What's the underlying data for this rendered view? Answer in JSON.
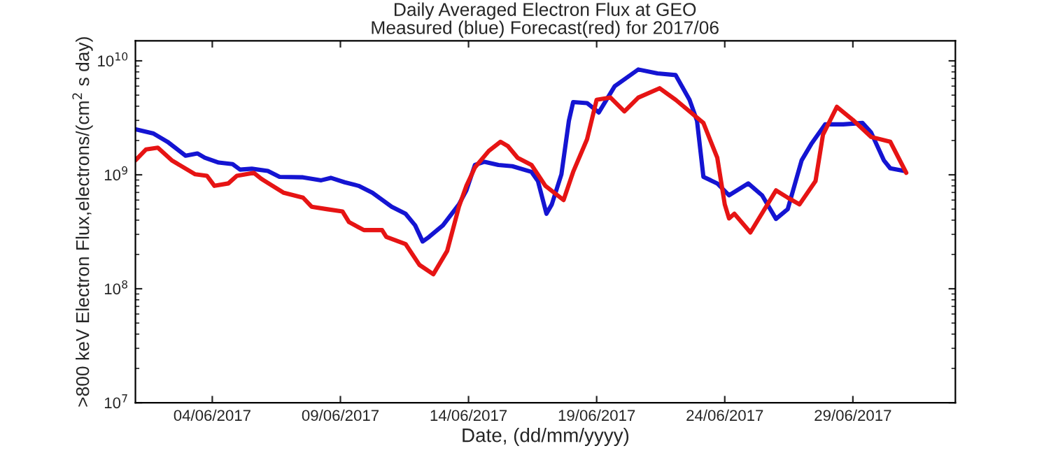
{
  "chart_data": {
    "type": "line",
    "title": "Daily Averaged Electron Flux at GEO",
    "subtitle": "Measured (blue) Forecast(red) for 2017/06",
    "xlabel": "Date, (dd/mm/yyyy)",
    "ylabel": ">800 keV Electron Flux,electrons/(cm$^{2}$ s day)",
    "log": "y",
    "grid": false,
    "legend": false,
    "marker": "none",
    "line_style": "solid",
    "xlim": [
      "2017-06-01",
      "2017-07-03"
    ],
    "xticks": [
      {
        "value": "2017-06-04",
        "label": "04/06/2017"
      },
      {
        "value": "2017-06-09",
        "label": "09/06/2017"
      },
      {
        "value": "2017-06-14",
        "label": "14/06/2017"
      },
      {
        "value": "2017-06-19",
        "label": "19/06/2017"
      },
      {
        "value": "2017-06-24",
        "label": "24/06/2017"
      },
      {
        "value": "2017-06-29",
        "label": "29/06/2017"
      }
    ],
    "ylim": [
      10000000.0,
      15000000000.0
    ],
    "yticks": [
      {
        "value": 10000000.0,
        "label": "10$^{7}$"
      },
      {
        "value": 100000000.0,
        "label": "10$^{8}$"
      },
      {
        "value": 1000000000.0,
        "label": "10$^{9}$"
      },
      {
        "value": 10000000000.0,
        "label": "10$^{10}$"
      }
    ],
    "series": [
      {
        "color": "#1414d2",
        "x": [
          "2017-06-01T01:00",
          "2017-06-01T17:00",
          "2017-06-02T06:00",
          "2017-06-02T23:00",
          "2017-06-03T10:00",
          "2017-06-03T17:00",
          "2017-06-04T06:00",
          "2017-06-04T19:00",
          "2017-06-05T02:00",
          "2017-06-05T13:00",
          "2017-06-06T04:00",
          "2017-06-06T15:00",
          "2017-06-07T13:00",
          "2017-06-08T06:00",
          "2017-06-08T15:00",
          "2017-06-09T04:00",
          "2017-06-09T17:00",
          "2017-06-10T06:00",
          "2017-06-11T00:00",
          "2017-06-11T13:00",
          "2017-06-11T22:00",
          "2017-06-12T05:00",
          "2017-06-12T11:00",
          "2017-06-13T00:00",
          "2017-06-13T15:00",
          "2017-06-13T22:00",
          "2017-06-14T06:00",
          "2017-06-14T15:00",
          "2017-06-15T04:00",
          "2017-06-15T17:00",
          "2017-06-16T11:00",
          "2017-06-16T17:00",
          "2017-06-17T01:00",
          "2017-06-17T06:00",
          "2017-06-17T15:00",
          "2017-06-17T22:00",
          "2017-06-18T02:00",
          "2017-06-18T15:00",
          "2017-06-19T02:00",
          "2017-06-19T17:00",
          "2017-06-20T15:00",
          "2017-06-21T09:00",
          "2017-06-22T02:00",
          "2017-06-22T15:00",
          "2017-06-22T22:00",
          "2017-06-23T04:00",
          "2017-06-23T17:00",
          "2017-06-24T04:00",
          "2017-06-24T22:00",
          "2017-06-25T11:00",
          "2017-06-26T00:00",
          "2017-06-26T11:00",
          "2017-06-27T00:00",
          "2017-06-27T09:00",
          "2017-06-27T22:00",
          "2017-06-28T15:00",
          "2017-06-29T09:00",
          "2017-06-29T17:00",
          "2017-06-30T05:00",
          "2017-06-30T11:00",
          "2017-07-01T00:00"
        ],
        "values": [
          2500000000.0,
          2300000000.0,
          1950000000.0,
          1470000000.0,
          1540000000.0,
          1410000000.0,
          1280000000.0,
          1240000000.0,
          1110000000.0,
          1130000000.0,
          1080000000.0,
          960000000.0,
          950000000.0,
          895000000.0,
          940000000.0,
          860000000.0,
          800000000.0,
          695000000.0,
          525000000.0,
          455000000.0,
          360000000.0,
          260000000.0,
          285000000.0,
          360000000.0,
          550000000.0,
          730000000.0,
          1220000000.0,
          1300000000.0,
          1220000000.0,
          1190000000.0,
          1060000000.0,
          880000000.0,
          455000000.0,
          550000000.0,
          1010000000.0,
          2980000000.0,
          4350000000.0,
          4260000000.0,
          3520000000.0,
          6000000000.0,
          8400000000.0,
          7750000000.0,
          7500000000.0,
          4550000000.0,
          2980000000.0,
          960000000.0,
          840000000.0,
          660000000.0,
          840000000.0,
          660000000.0,
          410000000.0,
          500000000.0,
          1340000000.0,
          1860000000.0,
          2770000000.0,
          2770000000.0,
          2850000000.0,
          2360000000.0,
          1340000000.0,
          1140000000.0,
          1080000000.0
        ]
      },
      {
        "color": "#e61414",
        "x": [
          "2017-06-01T00:00",
          "2017-06-01T10:00",
          "2017-06-01T21:00",
          "2017-06-02T10:00",
          "2017-06-03T08:00",
          "2017-06-03T19:00",
          "2017-06-04T02:00",
          "2017-06-04T15:00",
          "2017-06-04T23:00",
          "2017-06-05T15:00",
          "2017-06-05T22:00",
          "2017-06-06T19:00",
          "2017-06-07T13:00",
          "2017-06-07T21:00",
          "2017-06-08T11:00",
          "2017-06-09T02:00",
          "2017-06-09T08:00",
          "2017-06-09T22:00",
          "2017-06-10T15:00",
          "2017-06-10T19:00",
          "2017-06-11T13:00",
          "2017-06-12T02:00",
          "2017-06-12T15:00",
          "2017-06-13T04:00",
          "2017-06-13T15:00",
          "2017-06-13T22:00",
          "2017-06-14T06:00",
          "2017-06-14T19:00",
          "2017-06-15T06:00",
          "2017-06-15T13:00",
          "2017-06-15T22:00",
          "2017-06-16T11:00",
          "2017-06-17T00:00",
          "2017-06-17T17:00",
          "2017-06-18T02:00",
          "2017-06-18T15:00",
          "2017-06-19T00:00",
          "2017-06-19T13:00",
          "2017-06-20T02:00",
          "2017-06-20T15:00",
          "2017-06-21T11:00",
          "2017-06-22T02:00",
          "2017-06-23T04:00",
          "2017-06-23T17:00",
          "2017-06-24T00:00",
          "2017-06-24T04:00",
          "2017-06-24T09:00",
          "2017-06-25T00:00",
          "2017-06-26T00:00",
          "2017-06-26T11:00",
          "2017-06-26T22:00",
          "2017-06-27T13:00",
          "2017-06-27T20:00",
          "2017-06-28T09:00",
          "2017-06-29T00:00",
          "2017-06-29T17:00",
          "2017-06-30T11:00",
          "2017-07-01T02:00"
        ],
        "values": [
          1340000000.0,
          1670000000.0,
          1730000000.0,
          1340000000.0,
          1010000000.0,
          980000000.0,
          800000000.0,
          840000000.0,
          980000000.0,
          1040000000.0,
          920000000.0,
          695000000.0,
          630000000.0,
          525000000.0,
          500000000.0,
          476000000.0,
          385000000.0,
          327000000.0,
          327000000.0,
          285000000.0,
          247000000.0,
          162000000.0,
          134000000.0,
          215000000.0,
          525000000.0,
          800000000.0,
          1160000000.0,
          1620000000.0,
          1950000000.0,
          1780000000.0,
          1410000000.0,
          1220000000.0,
          800000000.0,
          600000000.0,
          1060000000.0,
          2050000000.0,
          4550000000.0,
          4760000000.0,
          3600000000.0,
          4760000000.0,
          5750000000.0,
          4550000000.0,
          2850000000.0,
          1410000000.0,
          550000000.0,
          414000000.0,
          455000000.0,
          312000000.0,
          730000000.0,
          630000000.0,
          550000000.0,
          880000000.0,
          2250000000.0,
          3950000000.0,
          3030000000.0,
          2150000000.0,
          1950000000.0,
          1040000000.0
        ]
      }
    ]
  }
}
